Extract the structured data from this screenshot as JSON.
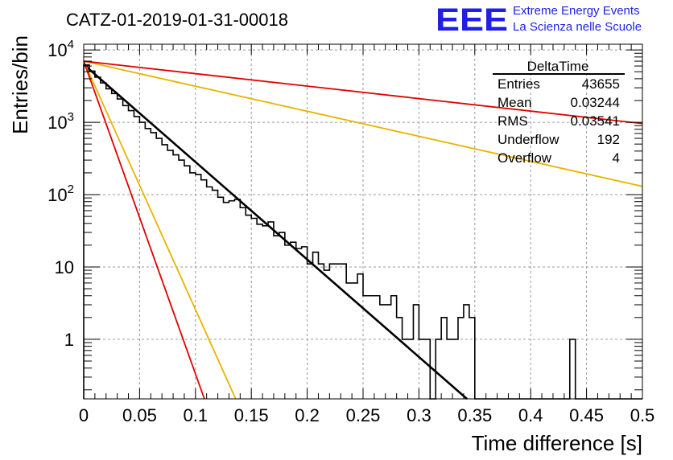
{
  "header": {
    "run_title": "CATZ-01-2019-01-31-00018",
    "logo_text": "EEE",
    "logo_line1": "Extreme Energy Events",
    "logo_line2": "La Scienza nelle Scuole"
  },
  "stats_box": {
    "title": "DeltaTime",
    "rows": [
      {
        "label": "Entries",
        "value": "43655"
      },
      {
        "label": "Mean",
        "value": "0.03244"
      },
      {
        "label": "RMS",
        "value": "0.03541"
      },
      {
        "label": "Underflow",
        "value": "192"
      },
      {
        "label": "Overflow",
        "value": "4"
      }
    ]
  },
  "chart_data": {
    "type": "histogram",
    "title": "CATZ-01-2019-01-31-00018",
    "xlabel": "Time difference [s]",
    "ylabel": "Entries/bin",
    "x_scale": "linear",
    "y_scale": "log",
    "xlim": [
      0,
      0.5
    ],
    "ylim": [
      0.15,
      12000
    ],
    "grid": true,
    "bin_width": 0.005,
    "x_ticks": [
      0,
      0.05,
      0.1,
      0.15,
      0.2,
      0.25,
      0.3,
      0.35,
      0.4,
      0.45,
      0.5
    ],
    "x_tick_labels": [
      "0",
      "0.05",
      "0.1",
      "0.15",
      "0.2",
      "0.25",
      "0.3",
      "0.35",
      "0.4",
      "0.45",
      "0.5"
    ],
    "y_ticks": [
      1,
      10,
      100,
      1000,
      10000
    ],
    "y_tick_labels": [
      {
        "base": "1",
        "exp": ""
      },
      {
        "base": "10",
        "exp": ""
      },
      {
        "base": "10",
        "exp": "2"
      },
      {
        "base": "10",
        "exp": "3"
      },
      {
        "base": "10",
        "exp": "4"
      }
    ],
    "histogram": {
      "color": "#000000",
      "values": [
        6200,
        5100,
        4200,
        3500,
        2900,
        2500,
        2100,
        1700,
        1450,
        1200,
        1000,
        820,
        720,
        600,
        490,
        410,
        355,
        300,
        250,
        200,
        190,
        160,
        128,
        115,
        92,
        78,
        82,
        86,
        66,
        52,
        47,
        39,
        37,
        42,
        27,
        30,
        20,
        22,
        18,
        19,
        11,
        16,
        11,
        9,
        11,
        11,
        11,
        6,
        6,
        8,
        4,
        4,
        4,
        3,
        3,
        4,
        2,
        1,
        1,
        3,
        1,
        1,
        0,
        1,
        2,
        1,
        1,
        2,
        3,
        2,
        0,
        0,
        0,
        0,
        0,
        0,
        0,
        0,
        0,
        0,
        0,
        0,
        0,
        0,
        0,
        0,
        0,
        1,
        0,
        0,
        0,
        0,
        0,
        0,
        0,
        0,
        0,
        0,
        0,
        0
      ]
    },
    "fits": [
      {
        "color": "#000000",
        "width": 2.6,
        "x": [
          0,
          0.343
        ],
        "y": [
          6300,
          0.15
        ]
      },
      {
        "color": "#e8b400",
        "width": 1.8,
        "x": [
          0,
          0.136
        ],
        "y": [
          7000,
          0.15
        ]
      },
      {
        "color": "#e8b400",
        "width": 1.8,
        "x": [
          0,
          0.5
        ],
        "y": [
          7000,
          130
        ]
      },
      {
        "color": "#e00000",
        "width": 1.8,
        "x": [
          0,
          0.108
        ],
        "y": [
          7000,
          0.15
        ]
      },
      {
        "color": "#e00000",
        "width": 1.8,
        "x": [
          0,
          0.5
        ],
        "y": [
          7000,
          960
        ]
      }
    ]
  },
  "colors": {
    "logo_blue": "#1f1fe8",
    "grid": "#9a9a9a"
  }
}
